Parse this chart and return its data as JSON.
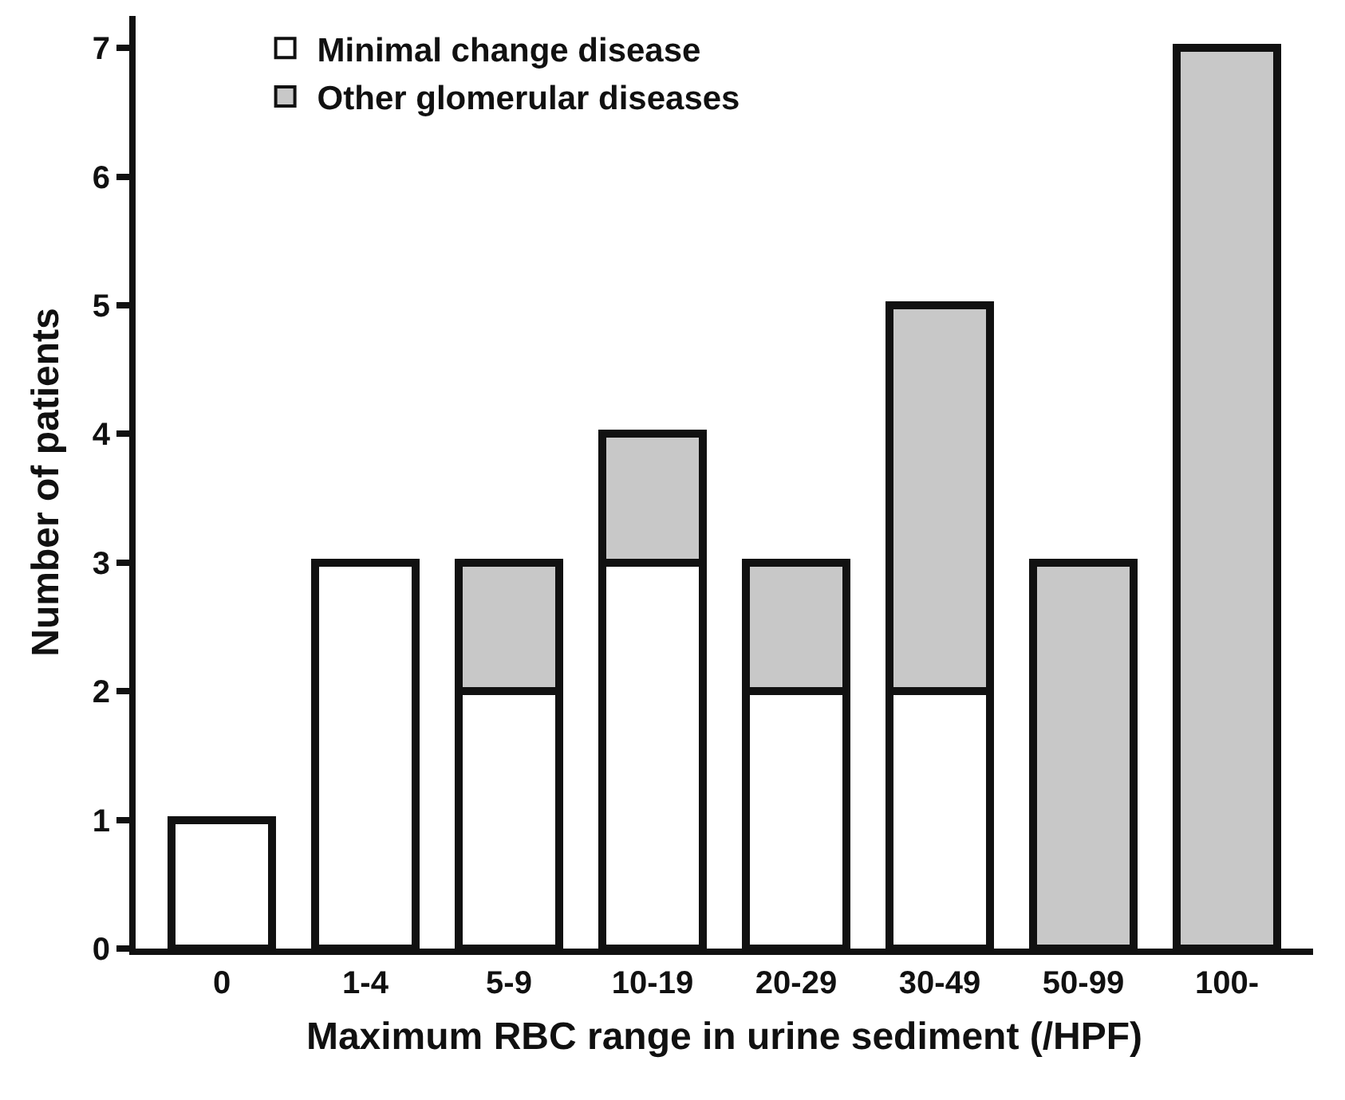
{
  "chart_data": {
    "type": "bar",
    "stacked": true,
    "xlabel": "Maximum RBC range in urine sediment (/HPF)",
    "ylabel": "Number of patients",
    "categories": [
      "0",
      "1-4",
      "5-9",
      "10-19",
      "20-29",
      "30-49",
      "50-99",
      "100-"
    ],
    "series": [
      {
        "name": "Minimal change disease",
        "color": "#ffffff",
        "values": [
          1,
          3,
          2,
          3,
          2,
          2,
          null,
          null
        ]
      },
      {
        "name": "Other glomerular diseases",
        "color": "#c8c8c8",
        "values": [
          null,
          null,
          1,
          1,
          1,
          3,
          3,
          7
        ]
      }
    ],
    "ylim": [
      0,
      7.25
    ],
    "yticks": [
      0,
      1,
      2,
      3,
      4,
      5,
      6,
      7
    ],
    "legend": "top left"
  }
}
